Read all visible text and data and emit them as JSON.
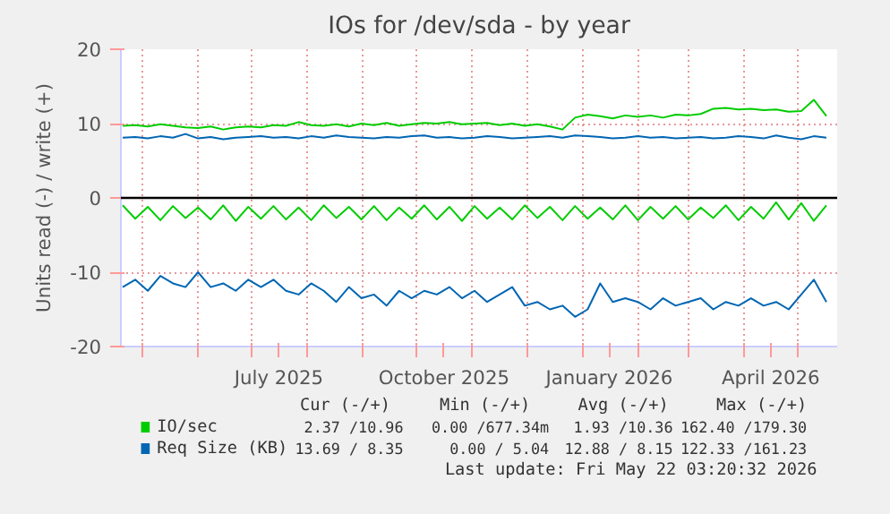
{
  "chart_data": {
    "type": "line",
    "title": "IOs for /dev/sda - by year",
    "ylabel": "Units read (-) / write (+)",
    "x": [
      "2025-04-20",
      "2025-04-27",
      "2025-05-04",
      "2025-05-11",
      "2025-05-18",
      "2025-05-25",
      "2025-06-01",
      "2025-06-08",
      "2025-06-15",
      "2025-06-22",
      "2025-06-29",
      "2025-07-06",
      "2025-07-13",
      "2025-07-20",
      "2025-07-27",
      "2025-08-03",
      "2025-08-10",
      "2025-08-17",
      "2025-08-24",
      "2025-08-31",
      "2025-09-07",
      "2025-09-14",
      "2025-09-21",
      "2025-09-28",
      "2025-10-05",
      "2025-10-12",
      "2025-10-19",
      "2025-10-26",
      "2025-11-02",
      "2025-11-09",
      "2025-11-16",
      "2025-11-23",
      "2025-11-30",
      "2025-12-07",
      "2025-12-14",
      "2025-12-21",
      "2025-12-28",
      "2026-01-04",
      "2026-01-11",
      "2026-01-18",
      "2026-01-25",
      "2026-02-01",
      "2026-02-08",
      "2026-02-15",
      "2026-02-22",
      "2026-03-01",
      "2026-03-08",
      "2026-03-15",
      "2026-03-22",
      "2026-03-29",
      "2026-04-05",
      "2026-04-12",
      "2026-04-19",
      "2026-04-26",
      "2026-05-03",
      "2026-05-10",
      "2026-05-17"
    ],
    "series": [
      {
        "name": "IO/sec",
        "color": "#00cc00",
        "values": [
          9.7,
          9.8,
          9.6,
          9.9,
          9.7,
          9.5,
          9.4,
          9.6,
          9.2,
          9.5,
          9.6,
          9.5,
          9.8,
          9.7,
          10.2,
          9.8,
          9.7,
          9.9,
          9.6,
          10.0,
          9.8,
          10.1,
          9.7,
          9.9,
          10.1,
          10.0,
          10.2,
          9.9,
          10.0,
          10.1,
          9.8,
          10.0,
          9.7,
          9.9,
          9.6,
          9.2,
          10.8,
          11.2,
          11.0,
          10.7,
          11.1,
          10.9,
          11.1,
          10.8,
          11.2,
          11.1,
          11.3,
          12.0,
          12.1,
          11.9,
          12.0,
          11.8,
          11.9,
          11.6,
          11.7,
          13.2,
          11.0
        ]
      },
      {
        "color": "#00cc00",
        "values": [
          -1.0,
          -2.8,
          -1.2,
          -3.0,
          -1.1,
          -2.7,
          -1.3,
          -2.9,
          -1.0,
          -3.1,
          -1.2,
          -2.8,
          -1.1,
          -2.9,
          -1.3,
          -3.0,
          -1.0,
          -2.7,
          -1.2,
          -2.9,
          -1.1,
          -3.0,
          -1.3,
          -2.8,
          -1.0,
          -2.9,
          -1.2,
          -3.1,
          -1.1,
          -2.8,
          -1.3,
          -2.9,
          -1.0,
          -2.7,
          -1.2,
          -3.0,
          -1.1,
          -2.8,
          -1.3,
          -2.9,
          -1.0,
          -3.0,
          -1.2,
          -2.8,
          -1.1,
          -2.9,
          -1.3,
          -2.7,
          -1.0,
          -3.0,
          -1.2,
          -2.8,
          -0.6,
          -2.9,
          -0.7,
          -3.1,
          -1.0
        ]
      },
      {
        "name": "Req Size (KB)",
        "color": "#0066b3",
        "values": [
          8.1,
          8.2,
          8.0,
          8.3,
          8.1,
          8.6,
          8.0,
          8.2,
          7.9,
          8.1,
          8.2,
          8.3,
          8.1,
          8.2,
          8.0,
          8.3,
          8.1,
          8.4,
          8.2,
          8.1,
          8.0,
          8.2,
          8.1,
          8.3,
          8.4,
          8.1,
          8.2,
          8.0,
          8.1,
          8.3,
          8.2,
          8.0,
          8.1,
          8.2,
          8.3,
          8.1,
          8.4,
          8.3,
          8.2,
          8.0,
          8.1,
          8.3,
          8.1,
          8.2,
          8.0,
          8.1,
          8.2,
          8.0,
          8.1,
          8.3,
          8.2,
          8.0,
          8.4,
          8.1,
          7.9,
          8.3,
          8.1
        ]
      },
      {
        "color": "#0066b3",
        "values": [
          -12,
          -11,
          -12.5,
          -10.5,
          -11.5,
          -12,
          -10,
          -12,
          -11.5,
          -12.5,
          -11,
          -12,
          -11,
          -12.5,
          -13,
          -11.5,
          -12.5,
          -14,
          -12,
          -13.5,
          -13,
          -14.5,
          -12.5,
          -13.5,
          -12.5,
          -13,
          -12,
          -13.5,
          -12.5,
          -14,
          -13,
          -12,
          -14.5,
          -14,
          -15,
          -14.5,
          -16,
          -15,
          -11.5,
          -14,
          -13.5,
          -14,
          -15,
          -13.5,
          -14.5,
          -14,
          -13.5,
          -15,
          -14,
          -14.5,
          -13.5,
          -14.5,
          -14,
          -15,
          -13,
          -11,
          -14
        ]
      }
    ],
    "xlim": [
      "2025-04-19",
      "2026-05-23"
    ],
    "xticks": [
      {
        "value": "2025-05-01",
        "label": null
      },
      {
        "value": "2025-06-01",
        "label": null
      },
      {
        "value": "2025-07-01",
        "label": null
      },
      {
        "value": "2025-07-16",
        "label": "July 2025"
      },
      {
        "value": "2025-08-01",
        "label": null
      },
      {
        "value": "2025-09-01",
        "label": null
      },
      {
        "value": "2025-10-01",
        "label": null
      },
      {
        "value": "2025-10-16",
        "label": "October 2025"
      },
      {
        "value": "2025-11-01",
        "label": null
      },
      {
        "value": "2025-12-01",
        "label": null
      },
      {
        "value": "2026-01-01",
        "label": null
      },
      {
        "value": "2026-01-16",
        "label": "January 2026"
      },
      {
        "value": "2026-02-01",
        "label": null
      },
      {
        "value": "2026-03-01",
        "label": null
      },
      {
        "value": "2026-04-01",
        "label": null
      },
      {
        "value": "2026-04-16",
        "label": "April 2026"
      },
      {
        "value": "2026-05-01",
        "label": null
      }
    ],
    "ylim": [
      -20,
      20
    ],
    "yticks": [
      -20,
      -10,
      0,
      10,
      20
    ],
    "grid": true,
    "ref_lines": [
      {
        "axis": "y",
        "value": 0,
        "color": "#000000"
      }
    ],
    "legend": "bottom",
    "annotations": [
      "Cur (-/+)",
      "Min (-/+)",
      "Avg (-/+)",
      "Max (-/+)",
      "2.37 /10.96",
      "0.00 /677.34m",
      "1.93 /10.36",
      "162.40 /179.30",
      "13.69 / 8.35",
      "0.00 / 5.04",
      "12.88 / 8.15",
      "122.33 /161.23",
      "Last update: Fri May 22 03:20:32 2026"
    ]
  }
}
